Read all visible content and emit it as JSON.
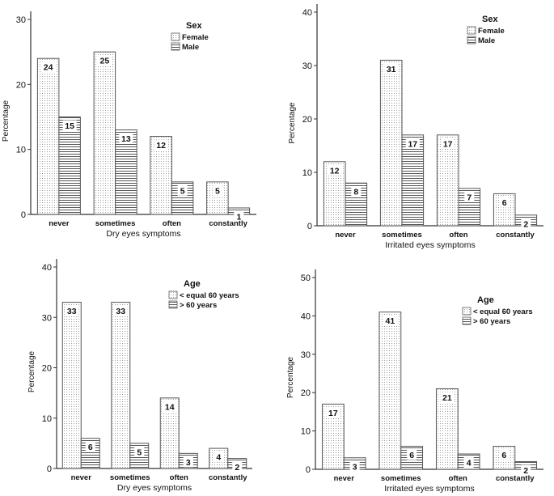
{
  "figure": {
    "colors": {
      "axis": "#333333",
      "bar_stroke": "#555555",
      "dots": "#9a9a9a",
      "lines": "#555555"
    }
  },
  "chart_data": [
    {
      "type": "bar",
      "title": "",
      "xlabel": "Dry eyes symptoms",
      "ylabel": "Percentage",
      "categories": [
        "never",
        "sometimes",
        "often",
        "constantly"
      ],
      "ylim": [
        0,
        30
      ],
      "yticks": [
        0,
        10,
        20,
        30
      ],
      "legend_title": "Sex",
      "legend_position": "top-right",
      "series": [
        {
          "name": "Female",
          "pattern": "dotted",
          "values": [
            24,
            25,
            12,
            5
          ],
          "labels": [
            "24",
            "25",
            "12",
            "5"
          ]
        },
        {
          "name": "Male",
          "pattern": "horizontal-lines",
          "values": [
            15,
            13,
            5,
            1
          ],
          "labels": [
            "15",
            "13",
            "5",
            "1"
          ]
        }
      ]
    },
    {
      "type": "bar",
      "title": "",
      "xlabel": "Irritated eyes symptoms",
      "ylabel": "Percentage",
      "categories": [
        "never",
        "sometimes",
        "often",
        "constantly"
      ],
      "ylim": [
        0,
        40
      ],
      "yticks": [
        0,
        10,
        20,
        30,
        40
      ],
      "legend_title": "Sex",
      "legend_position": "top-right",
      "series": [
        {
          "name": "Female",
          "pattern": "dotted",
          "values": [
            12,
            31,
            17,
            6
          ],
          "labels": [
            "12",
            "31",
            "17",
            "6"
          ]
        },
        {
          "name": "Male",
          "pattern": "horizontal-lines",
          "values": [
            8,
            17,
            7,
            2
          ],
          "labels": [
            "8",
            "17",
            "7",
            "2"
          ]
        }
      ]
    },
    {
      "type": "bar",
      "title": "",
      "xlabel": "Dry eyes symptoms",
      "ylabel": "Percentage",
      "categories": [
        "never",
        "sometimes",
        "often",
        "constantly"
      ],
      "ylim": [
        0,
        40
      ],
      "yticks": [
        0,
        10,
        20,
        30,
        40
      ],
      "legend_title": "Age",
      "legend_position": "top-right",
      "series": [
        {
          "name": "< equal 60 years",
          "pattern": "dotted",
          "values": [
            33,
            33,
            14,
            4
          ],
          "labels": [
            "33",
            "33",
            "14",
            "4"
          ]
        },
        {
          "name": "> 60 years",
          "pattern": "horizontal-lines",
          "values": [
            6,
            5,
            3,
            2
          ],
          "labels": [
            "6",
            "5",
            "3",
            "2"
          ]
        }
      ]
    },
    {
      "type": "bar",
      "title": "",
      "xlabel": "Irritated eyes symptoms",
      "ylabel": "Percentage",
      "categories": [
        "never",
        "sometimes",
        "often",
        "constantly"
      ],
      "ylim": [
        0,
        50
      ],
      "yticks": [
        0,
        10,
        20,
        30,
        40,
        50
      ],
      "legend_title": "Age",
      "legend_position": "top-right",
      "series": [
        {
          "name": "< equal 60 years",
          "pattern": "dotted",
          "values": [
            17,
            41,
            21,
            6
          ],
          "labels": [
            "17",
            "41",
            "21",
            "6"
          ]
        },
        {
          "name": "> 60 years",
          "pattern": "horizontal-lines",
          "values": [
            3,
            6,
            4,
            2
          ],
          "labels": [
            "3",
            "6",
            "4",
            "2"
          ]
        }
      ]
    }
  ]
}
